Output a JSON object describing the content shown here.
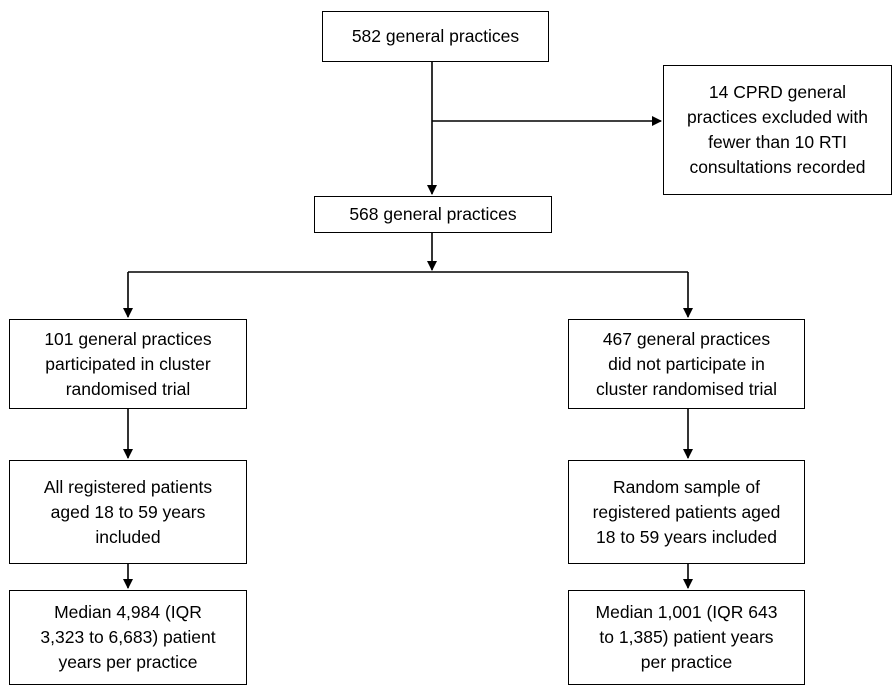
{
  "flowchart": {
    "top": "582 general practices",
    "excluded": "14 CPRD general\npractices excluded with\nfewer than 10 RTI\nconsultations recorded",
    "middle": "568 general practices",
    "left": {
      "participated": "101 general practices\nparticipated in cluster\nrandomised trial",
      "included": "All registered patients\naged 18 to 59 years\nincluded",
      "median": "Median 4,984 (IQR\n3,323 to 6,683) patient\nyears per practice"
    },
    "right": {
      "not_participated": "467 general practices\ndid not participate in\ncluster randomised trial",
      "included": "Random sample of\nregistered patients aged\n18 to 59 years included",
      "median": "Median 1,001 (IQR 643\nto 1,385) patient years\nper practice"
    }
  }
}
